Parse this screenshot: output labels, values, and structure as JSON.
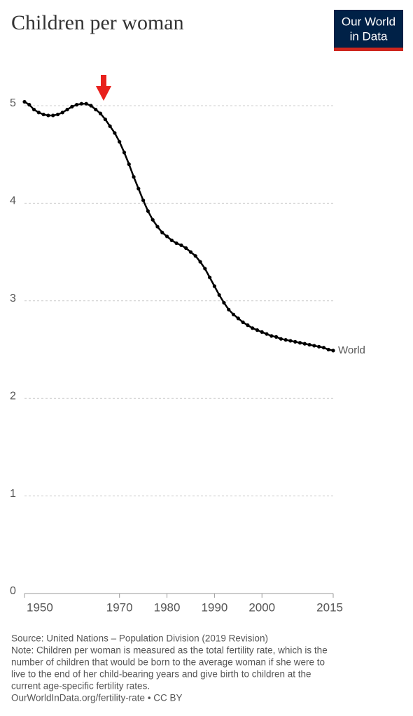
{
  "chart_data": {
    "type": "line",
    "title": "Children per woman",
    "logo": [
      "Our World",
      "in Data"
    ],
    "x": [
      1950,
      1951,
      1952,
      1953,
      1954,
      1955,
      1956,
      1957,
      1958,
      1959,
      1960,
      1961,
      1962,
      1963,
      1964,
      1965,
      1966,
      1967,
      1968,
      1969,
      1970,
      1971,
      1972,
      1973,
      1974,
      1975,
      1976,
      1977,
      1978,
      1979,
      1980,
      1981,
      1982,
      1983,
      1984,
      1985,
      1986,
      1987,
      1988,
      1989,
      1990,
      1991,
      1992,
      1993,
      1994,
      1995,
      1996,
      1997,
      1998,
      1999,
      2000,
      2001,
      2002,
      2003,
      2004,
      2005,
      2006,
      2007,
      2008,
      2009,
      2010,
      2011,
      2012,
      2013,
      2014,
      2015
    ],
    "series": [
      {
        "name": "World",
        "color": "#000000",
        "values": [
          5.04,
          5.01,
          4.96,
          4.93,
          4.91,
          4.9,
          4.9,
          4.91,
          4.93,
          4.96,
          4.99,
          5.01,
          5.02,
          5.02,
          5.0,
          4.96,
          4.92,
          4.86,
          4.79,
          4.72,
          4.63,
          4.52,
          4.4,
          4.27,
          4.15,
          4.03,
          3.92,
          3.83,
          3.76,
          3.7,
          3.66,
          3.62,
          3.59,
          3.57,
          3.54,
          3.5,
          3.46,
          3.4,
          3.33,
          3.24,
          3.15,
          3.06,
          2.98,
          2.91,
          2.86,
          2.82,
          2.78,
          2.75,
          2.72,
          2.7,
          2.68,
          2.66,
          2.64,
          2.63,
          2.61,
          2.6,
          2.59,
          2.58,
          2.57,
          2.56,
          2.55,
          2.54,
          2.53,
          2.52,
          2.5,
          2.49
        ]
      }
    ],
    "xlim": [
      1950,
      2015
    ],
    "xticks": [
      1950,
      1970,
      1980,
      1990,
      2000,
      2015
    ],
    "ylim": [
      0,
      5
    ],
    "yticks": [
      0,
      1,
      2,
      3,
      4,
      5
    ],
    "grid": true,
    "footer": [
      "Source: United Nations – Population Division (2019 Revision)",
      "Note: Children per woman is measured as the total fertility rate, which is the",
      "number of children that would be born to the average woman if she were to",
      "live to the end of her child-bearing years and give birth to children at the",
      "current age-specific fertility rates.",
      "OurWorldInData.org/fertility-rate • CC BY"
    ]
  }
}
